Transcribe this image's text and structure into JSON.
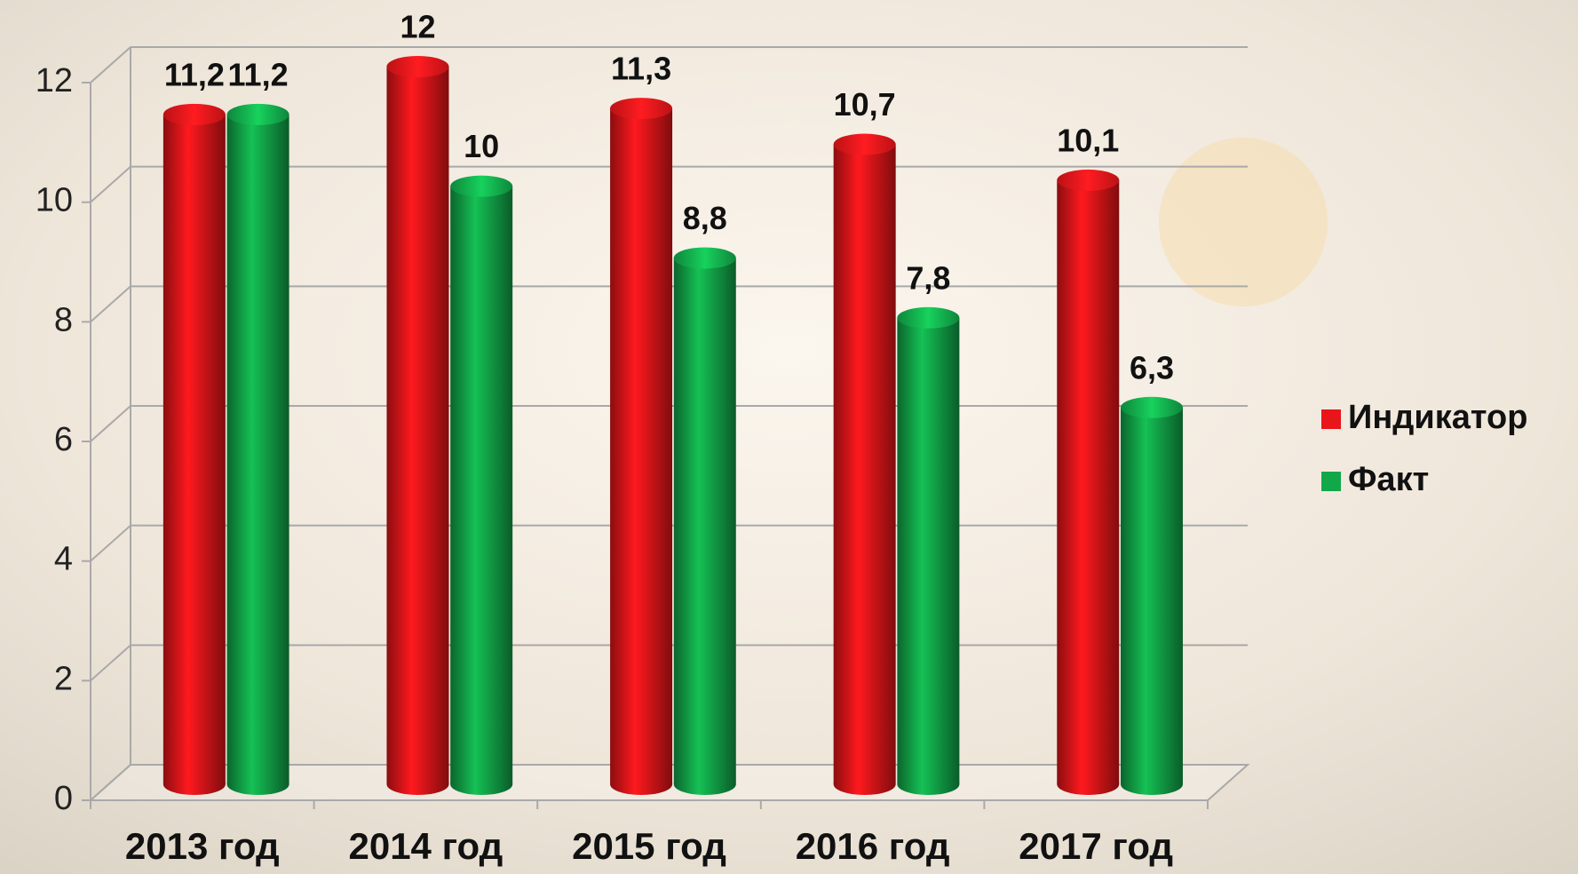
{
  "chart_data": {
    "type": "bar",
    "categories": [
      "2013 год",
      "2014 год",
      "2015 год",
      "2016 год",
      "2017 год"
    ],
    "series": [
      {
        "name": "Индикатор",
        "color": "#e8161a",
        "values": [
          11.2,
          12,
          11.3,
          10.7,
          10.1
        ],
        "value_labels": [
          "11,2",
          "12",
          "11,3",
          "10,7",
          "10,1"
        ]
      },
      {
        "name": "Факт",
        "color": "#12a84a",
        "values": [
          11.2,
          10,
          8.8,
          7.8,
          6.3
        ],
        "value_labels": [
          "11,2",
          "10",
          "8,8",
          "7,8",
          "6,3"
        ]
      }
    ],
    "ylim": [
      0,
      12
    ],
    "yticks": [
      0,
      2,
      4,
      6,
      8,
      10,
      12
    ],
    "grid": true,
    "legend": "right"
  }
}
